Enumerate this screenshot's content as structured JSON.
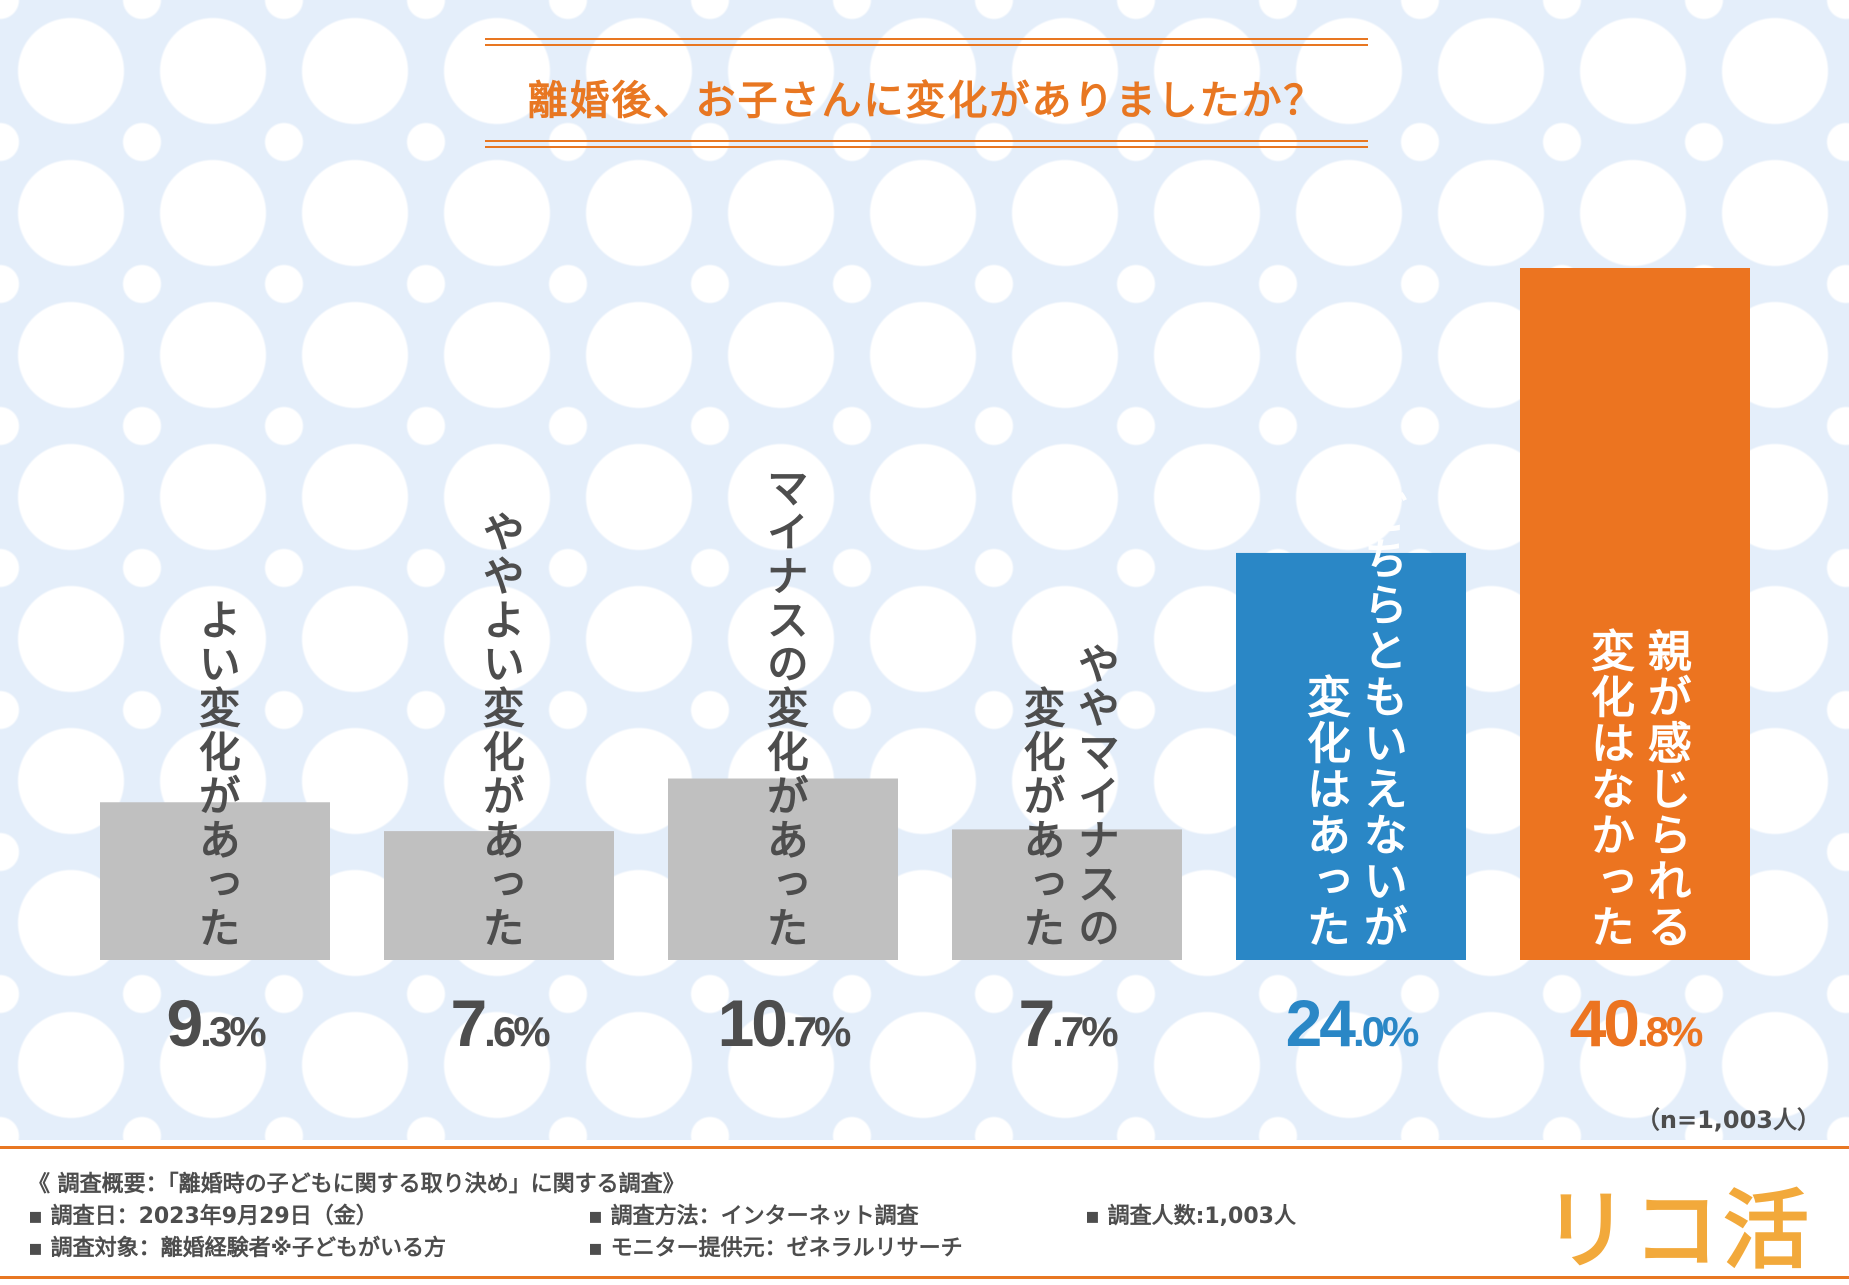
{
  "title": "離婚後、お子さんに変化がありましたか？",
  "sample_note": "（n=1,003人）",
  "colors": {
    "accent": "#e87722",
    "gray": "#c0c0c0",
    "blue": "#2a87c6",
    "orange": "#ec7420",
    "text_dark": "#4d4d4d",
    "logo": "#f2a93b"
  },
  "chart_data": {
    "type": "bar",
    "title": "離婚後、お子さんに変化がありましたか？",
    "categories": [
      "よい変化があった",
      "ややよい変化があった",
      "マイナスの変化があった",
      "ややマイナスの変化があった",
      "どちらともいえないが変化はあった",
      "親が感じられる変化はなかった"
    ],
    "label_columns": [
      [
        "よい変化があった"
      ],
      [
        "ややよい変化があった"
      ],
      [
        "マイナスの変化があった"
      ],
      [
        "ややマイナスの",
        "変化があった"
      ],
      [
        "どちらともいえないが",
        "変化はあった"
      ],
      [
        "親が感じられる",
        "変化はなかった"
      ]
    ],
    "values": [
      9.3,
      7.6,
      10.7,
      7.7,
      24.0,
      40.8
    ],
    "value_labels": [
      {
        "int": "9",
        "dec": ".3%"
      },
      {
        "int": "7",
        "dec": ".6%"
      },
      {
        "int": "10",
        "dec": ".7%"
      },
      {
        "int": "7",
        "dec": ".7%"
      },
      {
        "int": "24",
        "dec": ".0%"
      },
      {
        "int": "40",
        "dec": ".8%"
      }
    ],
    "bar_colors": [
      "#c0c0c0",
      "#c0c0c0",
      "#c0c0c0",
      "#c0c0c0",
      "#2a87c6",
      "#ec7420"
    ],
    "label_colors": [
      "#4d4d4d",
      "#4d4d4d",
      "#4d4d4d",
      "#4d4d4d",
      "#ffffff",
      "#ffffff"
    ],
    "value_colors": [
      "#4d4d4d",
      "#4d4d4d",
      "#4d4d4d",
      "#4d4d4d",
      "#2a87c6",
      "#ec7420"
    ],
    "unit": "%",
    "ylim": [
      0,
      40.8
    ],
    "n": "n=1,003人"
  },
  "footer": {
    "heading": "《 調査概要：「離婚時の子どもに関する取り決め」に関する調査》",
    "items": [
      "▪ 調査日：2023年9月29日（金）",
      "▪ 調査方法：インターネット調査",
      "▪ 調査人数:1,003人",
      "▪ 調査対象：離婚経験者※子どもがいる方",
      "▪ モニター提供元：ゼネラルリサーチ"
    ],
    "logo": "リコ活"
  }
}
